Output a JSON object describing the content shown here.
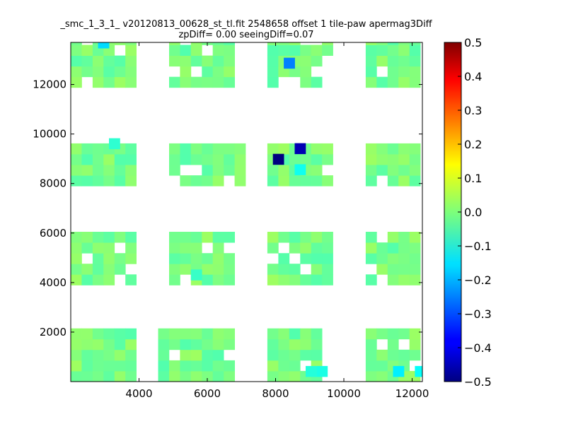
{
  "chart_data": {
    "type": "heatmap",
    "title_line1": "_smc_1_3_1_ v20120813_00628_st_tl.fit 2548658 offset 1 tile-paw apermag3Diff",
    "title_line2": "zpDiff= 0.00 seeingDiff=0.07",
    "xlabel": "",
    "ylabel": "",
    "xlim": [
      2000,
      12300
    ],
    "ylim": [
      0,
      13700
    ],
    "xticks": [
      4000,
      6000,
      8000,
      10000,
      12000
    ],
    "yticks": [
      2000,
      4000,
      6000,
      8000,
      10000,
      12000
    ],
    "xtick_labels": [
      "4000",
      "6000",
      "8000",
      "10000",
      "12000"
    ],
    "ytick_labels": [
      "2000",
      "4000",
      "6000",
      "8000",
      "10000",
      "12000"
    ],
    "colorbar": {
      "colormap": "jet",
      "vmin": -0.5,
      "vmax": 0.5,
      "ticks": [
        -0.5,
        -0.4,
        -0.3,
        -0.2,
        -0.1,
        0.0,
        0.1,
        0.2,
        0.3,
        0.4,
        0.5
      ],
      "tick_labels": [
        "−0.5",
        "−0.4",
        "−0.3",
        "−0.2",
        "−0.1",
        "0.0",
        "0.1",
        "0.2",
        "0.3",
        "0.4",
        "0.5"
      ]
    },
    "cell_width": 320,
    "cell_height": 430,
    "blocks": [
      {
        "x_range": [
          2000,
          3920
        ],
        "y_range": [
          0,
          2150
        ]
      },
      {
        "x_range": [
          4560,
          6800
        ],
        "y_range": [
          0,
          2150
        ]
      },
      {
        "x_range": [
          7760,
          9360
        ],
        "y_range": [
          0,
          2150
        ]
      },
      {
        "x_range": [
          10640,
          12240
        ],
        "y_range": [
          0,
          2150
        ]
      },
      {
        "x_range": [
          2000,
          3920
        ],
        "y_range": [
          3900,
          6050
        ]
      },
      {
        "x_range": [
          4880,
          6800
        ],
        "y_range": [
          3900,
          6050
        ]
      },
      {
        "x_range": [
          7760,
          9680
        ],
        "y_range": [
          3900,
          6050
        ]
      },
      {
        "x_range": [
          10640,
          12240
        ],
        "y_range": [
          3900,
          6050
        ]
      },
      {
        "x_range": [
          2000,
          3920
        ],
        "y_range": [
          7900,
          9620
        ]
      },
      {
        "x_range": [
          4880,
          7120
        ],
        "y_range": [
          7900,
          9620
        ]
      },
      {
        "x_range": [
          7760,
          9680
        ],
        "y_range": [
          7900,
          9620
        ]
      },
      {
        "x_range": [
          10640,
          12240
        ],
        "y_range": [
          7900,
          9620
        ]
      },
      {
        "x_range": [
          2000,
          3920
        ],
        "y_range": [
          11880,
          13740
        ]
      },
      {
        "x_range": [
          4880,
          6800
        ],
        "y_range": [
          11880,
          13740
        ]
      },
      {
        "x_range": [
          7760,
          9680
        ],
        "y_range": [
          11880,
          13740
        ]
      },
      {
        "x_range": [
          10640,
          12240
        ],
        "y_range": [
          11880,
          13740
        ]
      }
    ],
    "outliers": [
      {
        "x": 7920,
        "y": 8770,
        "value": -0.5
      },
      {
        "x": 8560,
        "y": 9200,
        "value": -0.45
      },
      {
        "x": 8240,
        "y": 12650,
        "value": -0.25
      },
      {
        "x": 2800,
        "y": 13470,
        "value": -0.16
      },
      {
        "x": 11440,
        "y": 200,
        "value": -0.14
      },
      {
        "x": 12080,
        "y": 200,
        "value": -0.12
      },
      {
        "x": 9200,
        "y": 200,
        "value": -0.1
      },
      {
        "x": 8880,
        "y": 200,
        "value": -0.09
      },
      {
        "x": 8560,
        "y": 8350,
        "value": -0.11
      },
      {
        "x": 3120,
        "y": 9400,
        "value": -0.08
      },
      {
        "x": 5520,
        "y": 4100,
        "value": -0.07
      }
    ]
  }
}
